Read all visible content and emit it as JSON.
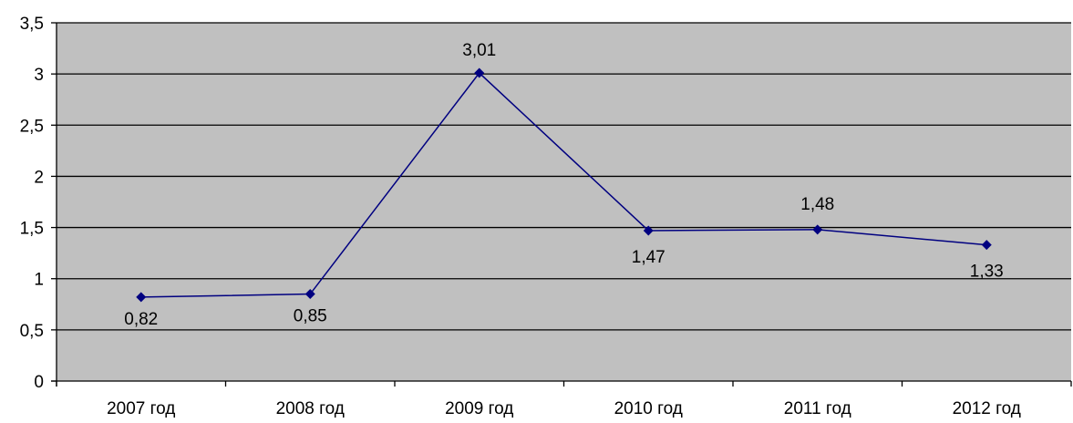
{
  "chart_data": {
    "type": "line",
    "categories": [
      "2007 год",
      "2008 год",
      "2009 год",
      "2010 год",
      "2011 год",
      "2012 год"
    ],
    "series": [
      {
        "values": [
          0.82,
          0.85,
          3.01,
          1.47,
          1.48,
          1.33
        ],
        "data_labels": [
          "0,82",
          "0,85",
          "3,01",
          "1,47",
          "1,48",
          "1,33"
        ]
      }
    ],
    "ylim": [
      0,
      3.5
    ],
    "y_ticks": [
      0,
      0.5,
      1,
      1.5,
      2,
      2.5,
      3,
      3.5
    ],
    "y_tick_labels": [
      "0",
      "0,5",
      "1",
      "1,5",
      "2",
      "2,5",
      "3",
      "3,5"
    ],
    "grid": true,
    "legend": "none",
    "colors": {
      "plot_background": "#c0c0c0",
      "line": "#000080",
      "gridline": "#000000"
    }
  }
}
